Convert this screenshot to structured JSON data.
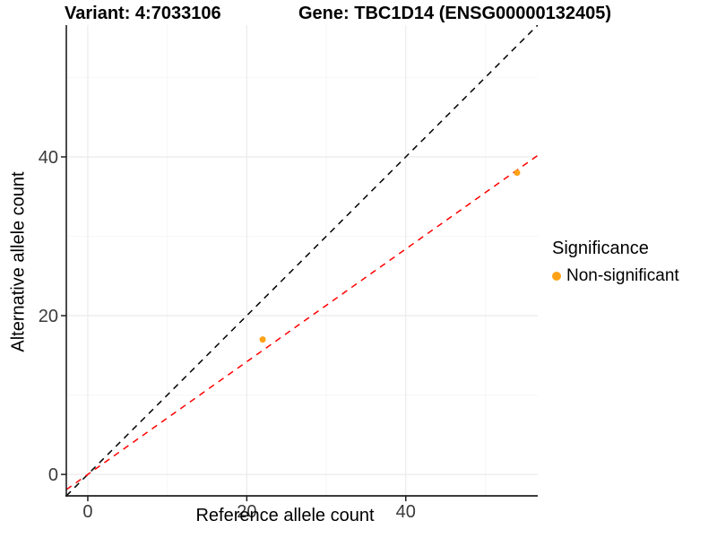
{
  "chart_data": {
    "type": "scatter",
    "title": "Variant: 4:7033106",
    "gene_title": "Gene: TBC1D14 (ENSG00000132405)",
    "xlabel": "Reference allele count",
    "ylabel": "Alternative allele count",
    "xlim": [
      -2.7,
      56.6
    ],
    "ylim": [
      -2.7,
      56.6
    ],
    "x_ticks": [
      0,
      20,
      40
    ],
    "y_ticks": [
      0,
      20,
      40
    ],
    "x_minor_gridlines": [
      10,
      30,
      50
    ],
    "y_minor_gridlines": [
      10,
      30,
      50
    ],
    "grid": true,
    "legend_position": "right",
    "series": [
      {
        "name": "Non-significant",
        "color": "#FFA216",
        "point_radius": 3.5,
        "points": [
          {
            "x": 22,
            "y": 17
          },
          {
            "x": 54,
            "y": 38
          }
        ]
      }
    ],
    "reference_lines": [
      {
        "name": "identity-line",
        "slope": 1,
        "intercept": 0,
        "color": "#000000",
        "style": "dashed"
      },
      {
        "name": "fitted-ratio-line",
        "slope": 0.71,
        "intercept": 0,
        "color": "#FF0000",
        "style": "dashed"
      }
    ]
  },
  "legend": {
    "title": "Significance",
    "items": [
      {
        "label": "Non-significant",
        "color": "#FFA216"
      }
    ]
  },
  "styles": {
    "grid_major_color": "#ebebeb",
    "grid_minor_color": "#f6f6f6",
    "axis_line_color": "#1f1f1f",
    "tick_label_color": "#3a3a3a",
    "tick_font_size": 20,
    "dash_pattern": "7 6"
  }
}
